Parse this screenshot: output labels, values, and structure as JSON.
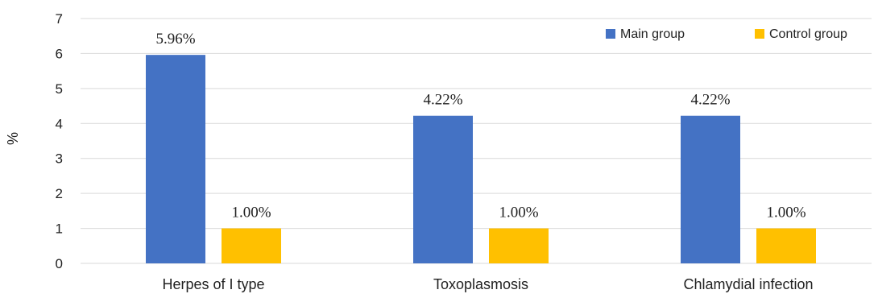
{
  "chart_data": {
    "type": "bar",
    "categories": [
      "Herpes of I type",
      "Toxoplasmosis",
      "Chlamydial infection"
    ],
    "series": [
      {
        "name": "Main group",
        "color": "#4472C4",
        "values": [
          5.96,
          4.22,
          4.22
        ],
        "labels": [
          "5.96%",
          "4.22%",
          "4.22%"
        ]
      },
      {
        "name": "Control group",
        "color": "#FFC000",
        "values": [
          1.0,
          1.0,
          1.0
        ],
        "labels": [
          "1.00%",
          "1.00%",
          "1.00%"
        ]
      }
    ],
    "ylabel": "%",
    "ylim": [
      0,
      7
    ],
    "yticks": [
      0,
      1,
      2,
      3,
      4,
      5,
      6,
      7
    ],
    "grid": true,
    "legend_position": "top-right"
  }
}
